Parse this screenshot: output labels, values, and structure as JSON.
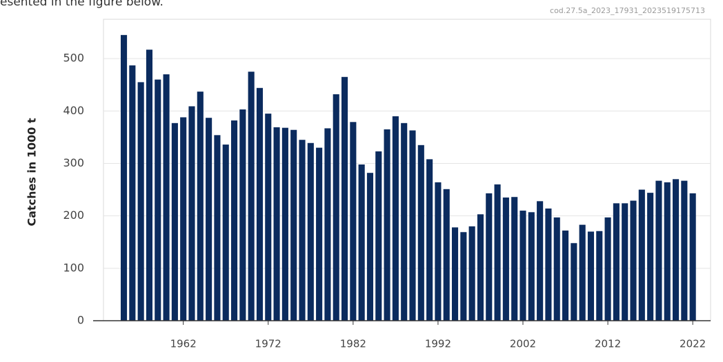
{
  "header_text": "esented in the figure below.",
  "chart_data": {
    "type": "bar",
    "source_label": "cod.27.5a_2023_17931_2023519175713",
    "y_label": "Catches in 1000 t",
    "color": "#0b2b5e",
    "x": [
      1955,
      1956,
      1957,
      1958,
      1959,
      1960,
      1961,
      1962,
      1963,
      1964,
      1965,
      1966,
      1967,
      1968,
      1969,
      1970,
      1971,
      1972,
      1973,
      1974,
      1975,
      1976,
      1977,
      1978,
      1979,
      1980,
      1981,
      1982,
      1983,
      1984,
      1985,
      1986,
      1987,
      1988,
      1989,
      1990,
      1991,
      1992,
      1993,
      1994,
      1995,
      1996,
      1997,
      1998,
      1999,
      2000,
      2001,
      2002,
      2003,
      2004,
      2005,
      2006,
      2007,
      2008,
      2009,
      2010,
      2011,
      2012,
      2013,
      2014,
      2015,
      2016,
      2017,
      2018,
      2019,
      2020,
      2021,
      2022
    ],
    "values": [
      545,
      487,
      455,
      517,
      460,
      470,
      377,
      388,
      409,
      437,
      387,
      354,
      336,
      382,
      403,
      475,
      444,
      395,
      369,
      368,
      364,
      345,
      339,
      330,
      367,
      432,
      465,
      379,
      298,
      282,
      323,
      365,
      390,
      377,
      363,
      335,
      308,
      264,
      251,
      178,
      169,
      180,
      203,
      243,
      260,
      235,
      236,
      210,
      207,
      228,
      214,
      197,
      172,
      148,
      183,
      170,
      171,
      197,
      224,
      224,
      229,
      250,
      244,
      267,
      264,
      270,
      267,
      243
    ],
    "xlim": [
      1952.6,
      2024.1
    ],
    "xticks": [
      1962,
      1972,
      1982,
      1992,
      2002,
      2012,
      2022
    ],
    "ylim": [
      0,
      575
    ],
    "yticks": [
      0,
      100,
      200,
      300,
      400,
      500
    ],
    "grid": true
  }
}
